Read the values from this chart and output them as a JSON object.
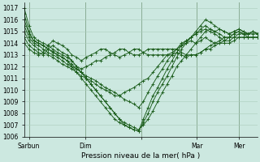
{
  "xlabel": "Pression niveau de la mer( hPa )",
  "bg_color": "#cce8e0",
  "grid_color": "#aaccbb",
  "line_color": "#1a5c1a",
  "ylim": [
    1006,
    1017.5
  ],
  "xlim": [
    0,
    100
  ],
  "ytick_positions": [
    1006,
    1007,
    1008,
    1009,
    1010,
    1011,
    1012,
    1013,
    1014,
    1015,
    1016,
    1017
  ],
  "xtick_positions": [
    2,
    26,
    50,
    74,
    92
  ],
  "xtick_labels": [
    "Sarbun",
    "Dim",
    "",
    "Mar",
    "Mer"
  ],
  "day_lines": [
    2,
    26,
    50,
    74,
    92
  ],
  "series": [
    [
      1017.0,
      1015.5,
      1014.5,
      1014.2,
      1014.0,
      1013.8,
      1013.5,
      1013.2,
      1013.0,
      1012.8,
      1012.5,
      1012.0,
      1011.5,
      1011.0,
      1010.5,
      1010.0,
      1009.5,
      1009.0,
      1008.5,
      1008.0,
      1007.5,
      1007.2,
      1007.0,
      1006.8,
      1006.6,
      1007.0,
      1007.5,
      1008.2,
      1009.0,
      1009.8,
      1010.5,
      1011.2,
      1012.0,
      1012.5,
      1013.0,
      1013.5,
      1014.0,
      1014.5,
      1015.0,
      1015.2,
      1015.0,
      1015.2,
      1015.0,
      1014.8,
      1015.0,
      1015.2,
      1015.0,
      1014.8,
      1015.0,
      1014.8
    ],
    [
      1016.5,
      1015.0,
      1014.2,
      1014.0,
      1013.8,
      1013.5,
      1013.2,
      1013.0,
      1012.8,
      1012.5,
      1012.0,
      1011.5,
      1011.0,
      1010.5,
      1010.0,
      1009.5,
      1009.0,
      1008.5,
      1008.0,
      1007.5,
      1007.2,
      1007.0,
      1006.8,
      1006.6,
      1006.5,
      1007.2,
      1008.0,
      1009.0,
      1009.8,
      1010.5,
      1011.2,
      1012.0,
      1012.8,
      1013.5,
      1014.0,
      1014.5,
      1015.0,
      1015.5,
      1016.0,
      1015.8,
      1015.5,
      1015.2,
      1015.0,
      1014.8,
      1015.0,
      1015.2,
      1015.0,
      1014.8,
      1015.0,
      1014.8
    ],
    [
      1016.0,
      1014.8,
      1014.2,
      1014.0,
      1013.8,
      1013.5,
      1013.3,
      1013.0,
      1012.8,
      1012.5,
      1012.2,
      1011.8,
      1011.5,
      1011.0,
      1010.5,
      1010.0,
      1009.5,
      1009.0,
      1008.5,
      1008.0,
      1007.5,
      1007.0,
      1006.8,
      1006.6,
      1006.5,
      1007.5,
      1008.5,
      1009.5,
      1010.2,
      1011.0,
      1011.8,
      1012.5,
      1013.2,
      1013.8,
      1014.2,
      1014.5,
      1014.8,
      1015.2,
      1015.5,
      1015.2,
      1015.0,
      1014.8,
      1014.5,
      1014.5,
      1014.8,
      1015.0,
      1014.8,
      1014.8,
      1015.0,
      1014.8
    ],
    [
      1015.5,
      1014.5,
      1014.0,
      1013.8,
      1013.5,
      1013.2,
      1013.0,
      1012.8,
      1012.5,
      1012.2,
      1012.0,
      1011.8,
      1011.5,
      1011.2,
      1011.0,
      1010.8,
      1010.5,
      1010.2,
      1010.0,
      1009.8,
      1009.5,
      1009.2,
      1009.0,
      1008.8,
      1008.5,
      1009.0,
      1009.8,
      1010.5,
      1011.2,
      1011.8,
      1012.5,
      1013.0,
      1013.5,
      1014.0,
      1014.2,
      1014.5,
      1014.8,
      1015.0,
      1015.2,
      1015.0,
      1014.8,
      1014.5,
      1014.2,
      1014.5,
      1014.8,
      1015.0,
      1014.8,
      1014.5,
      1014.5,
      1014.5
    ],
    [
      1015.0,
      1014.2,
      1013.8,
      1013.5,
      1013.2,
      1013.0,
      1012.8,
      1012.5,
      1012.2,
      1012.0,
      1011.8,
      1011.5,
      1011.2,
      1011.0,
      1010.8,
      1010.5,
      1010.2,
      1010.0,
      1009.8,
      1009.5,
      1009.5,
      1009.8,
      1010.0,
      1010.2,
      1010.5,
      1010.8,
      1011.0,
      1011.5,
      1012.0,
      1012.5,
      1013.0,
      1013.2,
      1013.5,
      1013.8,
      1014.0,
      1014.2,
      1014.0,
      1014.2,
      1014.5,
      1014.2,
      1014.0,
      1014.0,
      1014.0,
      1014.0,
      1014.2,
      1014.5,
      1014.5,
      1014.5,
      1014.5,
      1014.5
    ],
    [
      1014.5,
      1013.8,
      1013.5,
      1013.2,
      1013.0,
      1013.5,
      1013.8,
      1013.5,
      1013.2,
      1013.0,
      1012.5,
      1012.0,
      1011.8,
      1012.0,
      1012.2,
      1012.5,
      1012.5,
      1012.8,
      1013.0,
      1013.2,
      1013.5,
      1013.5,
      1013.2,
      1013.0,
      1013.0,
      1013.2,
      1013.5,
      1013.5,
      1013.5,
      1013.5,
      1013.5,
      1013.5,
      1013.5,
      1013.2,
      1013.0,
      1013.0,
      1013.0,
      1013.2,
      1013.5,
      1013.5,
      1013.8,
      1014.0,
      1014.2,
      1014.2,
      1014.5,
      1014.5,
      1014.5,
      1014.5,
      1014.5,
      1014.5
    ],
    [
      1014.0,
      1013.5,
      1013.2,
      1013.0,
      1013.2,
      1013.8,
      1014.2,
      1014.0,
      1013.8,
      1013.5,
      1013.0,
      1012.8,
      1012.5,
      1012.8,
      1013.0,
      1013.2,
      1013.5,
      1013.5,
      1013.2,
      1013.0,
      1012.8,
      1013.0,
      1013.2,
      1013.5,
      1013.5,
      1013.2,
      1013.0,
      1013.0,
      1013.0,
      1013.0,
      1013.0,
      1013.0,
      1013.2,
      1013.0,
      1012.8,
      1013.0,
      1013.0,
      1013.2,
      1013.5,
      1013.8,
      1014.0,
      1014.2,
      1014.5,
      1014.5,
      1014.5,
      1014.8,
      1014.8,
      1014.8,
      1014.8,
      1014.8
    ]
  ]
}
